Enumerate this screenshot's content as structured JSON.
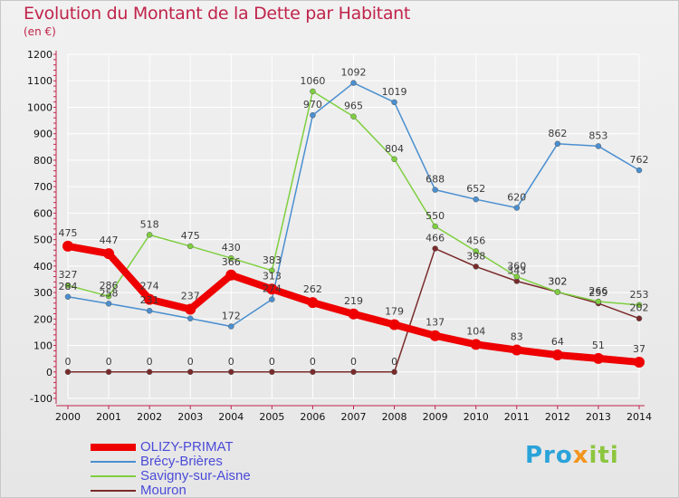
{
  "header": {
    "title": "Evolution du Montant de la Dette par Habitant",
    "subtitle": "(en €)"
  },
  "logo": {
    "p1": "Pro",
    "p2": "x",
    "p3": "iti"
  },
  "colors": {
    "title": "#c0244a",
    "axis": "#c0244a",
    "grid": "#ffffff",
    "legend_text": "#4b4bd8"
  },
  "chart_data": {
    "type": "line",
    "title": "Evolution du Montant de la Dette par Habitant",
    "subtitle": "(en €)",
    "x": [
      "2000",
      "2001",
      "2002",
      "2003",
      "2004",
      "2005",
      "2006",
      "2007",
      "2008",
      "2009",
      "2010",
      "2011",
      "2012",
      "2013",
      "2014"
    ],
    "ylim": [
      -100,
      1200
    ],
    "yticks": [
      -100,
      0,
      100,
      200,
      300,
      400,
      500,
      600,
      700,
      800,
      900,
      1000,
      1100,
      1200
    ],
    "grid": true,
    "legend_position": "bottom-left",
    "series": [
      {
        "name": "OLIZY-PRIMAT",
        "color": "#ee0000",
        "width": 8,
        "radius": 6,
        "label_offset": -11,
        "values": [
          475,
          447,
          274,
          237,
          366,
          313,
          262,
          219,
          179,
          137,
          104,
          83,
          64,
          51,
          37
        ],
        "labels": [
          "475",
          "447",
          "274",
          "237",
          "366",
          "313",
          "262",
          "219",
          "179",
          "137",
          "104",
          "83",
          "64",
          "51",
          "37"
        ]
      },
      {
        "name": "Brécy-Brières",
        "color": "#4a8fd0",
        "width": 1.5,
        "radius": 3,
        "label_offset": -8,
        "values": [
          284,
          258,
          231,
          202,
          172,
          274,
          970,
          1092,
          1019,
          688,
          652,
          620,
          862,
          853,
          762
        ],
        "labels": [
          "284",
          "258",
          "231",
          "",
          "172",
          "274",
          "970",
          "1092",
          "1019",
          "688",
          "652",
          "620",
          "862",
          "853",
          "762"
        ]
      },
      {
        "name": "Savigny-sur-Aisne",
        "color": "#7fcf3f",
        "width": 1.5,
        "radius": 3,
        "label_offset": -8,
        "values": [
          327,
          286,
          518,
          475,
          430,
          383,
          1060,
          965,
          804,
          550,
          456,
          360,
          302,
          266,
          253
        ],
        "labels": [
          "327",
          "286",
          "518",
          "475",
          "430",
          "383",
          "1060",
          "965",
          "804",
          "550",
          "456",
          "360",
          "302",
          "266",
          "253"
        ]
      },
      {
        "name": "Mouron",
        "color": "#7a2a2a",
        "width": 1.5,
        "radius": 3,
        "label_offset": -8,
        "values": [
          0,
          0,
          0,
          0,
          0,
          0,
          0,
          0,
          0,
          466,
          398,
          343,
          302,
          259,
          202
        ],
        "labels": [
          "0",
          "0",
          "0",
          "0",
          "0",
          "0",
          "0",
          "0",
          "0",
          "466",
          "398",
          "343",
          "302",
          "259",
          "202"
        ]
      }
    ]
  }
}
